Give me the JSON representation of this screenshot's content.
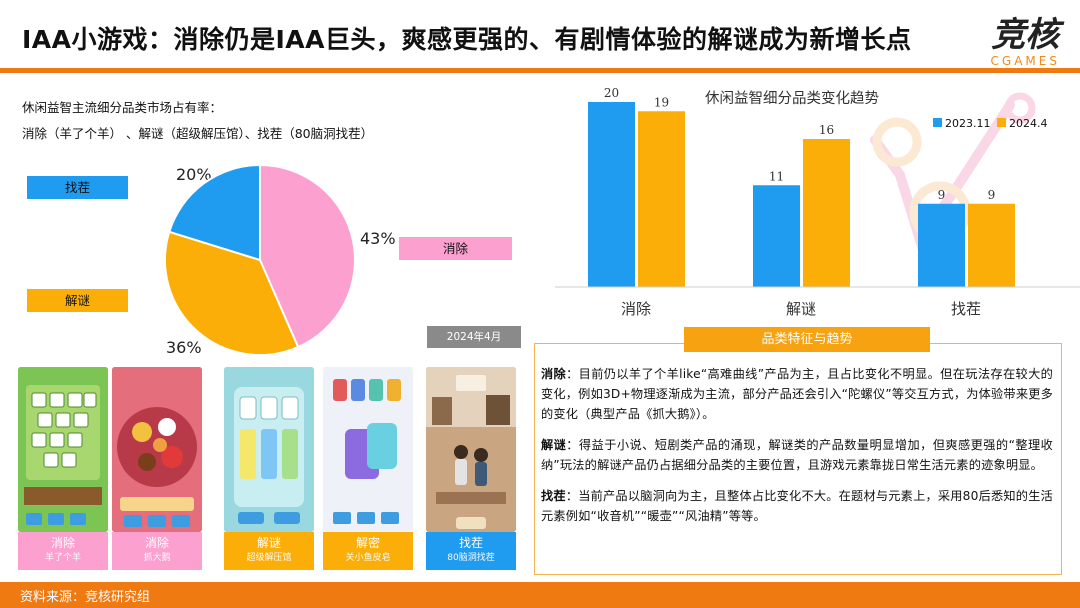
{
  "header": {
    "title": "IAA小游戏：消除仍是IAA巨头，爽感更强的、有剧情体验的解谜成为新增长点",
    "brand_cn": "竞核",
    "brand_en": "CGAMES"
  },
  "share": {
    "title": "休闲益智主流细分品类市场占有率：",
    "subtitle": "消除（羊了个羊）  、解谜（超级解压馆）、找茬（80脑洞找茬）"
  },
  "colors": {
    "blue": "#1f9bf0",
    "orange": "#fbae07",
    "pink": "#fca0d0",
    "accent": "#f07a12"
  },
  "chart_data": [
    {
      "type": "pie",
      "labels": [
        "消除",
        "解谜",
        "找茬"
      ],
      "values": [
        43,
        36,
        20
      ],
      "value_labels": [
        "43%",
        "36%",
        "20%"
      ]
    },
    {
      "type": "bar",
      "title": "休闲益智细分品类变化趋势",
      "categories": [
        "消除",
        "解谜",
        "找茬"
      ],
      "series": [
        {
          "name": "2023.11",
          "values": [
            20,
            11,
            9
          ]
        },
        {
          "name": "2024.4",
          "values": [
            19,
            16,
            9
          ]
        }
      ],
      "ylim": [
        0,
        20
      ],
      "grid": false,
      "legend": "top-right"
    }
  ],
  "date_tag": "2024年4月",
  "screenshots": [
    {
      "label": "消除",
      "sub": "羊了个羊"
    },
    {
      "label": "消除",
      "sub": "抓大鹅"
    },
    {
      "label": "解谜",
      "sub": "超级解压馆"
    },
    {
      "label": "解密",
      "sub": "关小鱼皮皂"
    },
    {
      "label": "找茬",
      "sub": "80脑洞找茬"
    }
  ],
  "features": {
    "heading": "品类特征与趋势",
    "paragraphs": [
      {
        "term": "消除",
        "text": "：目前仍以羊了个羊like“高难曲线”产品为主，且占比变化不明显。但在玩法存在较大的变化，例如3D+物理逐渐成为主流，部分产品还会引入“陀螺仪”等交互方式，为体验带来更多的变化（典型产品《抓大鹅》）。"
      },
      {
        "term": "解谜",
        "text": "：得益于小说、短剧类产品的涌现，解谜类的产品数量明显增加，但爽感更强的“整理收纳”玩法的解谜产品仍占据细分品类的主要位置，且游戏元素靠拢日常生活元素的迹象明显。"
      },
      {
        "term": "找茬",
        "text": "：当前产品以脑洞向为主，且整体占比变化不大。在题材与元素上，采用80后悉知的生活元素例如“收音机”“暖壶”“风油精”等等。"
      }
    ]
  },
  "footer": {
    "source": "资料来源：竞核研究组"
  }
}
